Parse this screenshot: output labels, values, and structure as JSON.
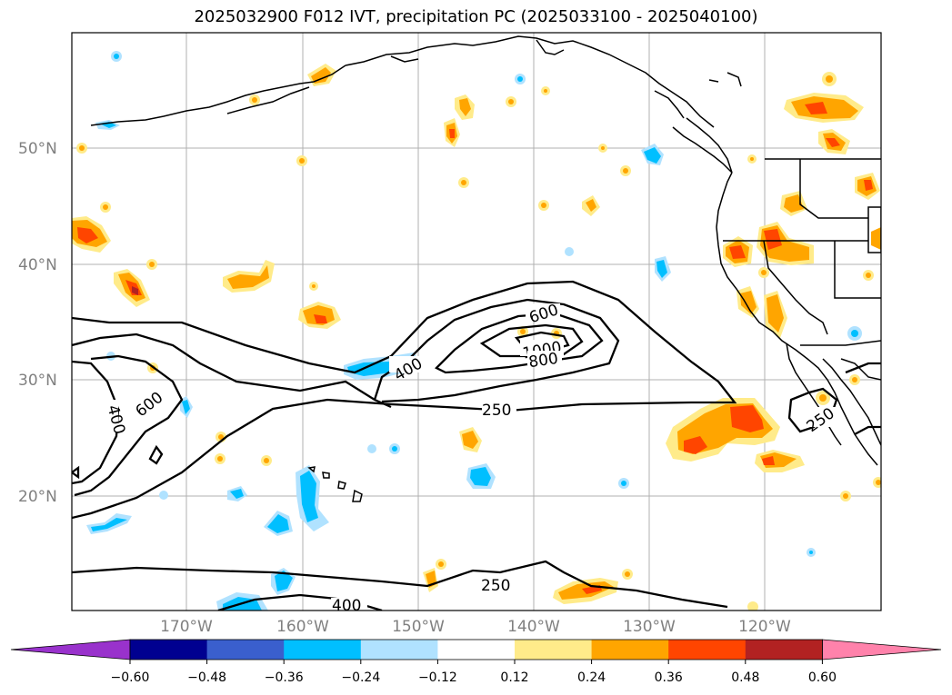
{
  "title": "2025032900 F012 IVT, precipitation PC (2025033100 - 2025040100)",
  "lat_labels": [
    "50°N",
    "40°N",
    "30°N",
    "20°N"
  ],
  "lon_labels": [
    "170°W",
    "160°W",
    "150°W",
    "140°W",
    "130°W",
    "120°W"
  ],
  "contour_labels": [
    "600",
    "1000",
    "800",
    "400",
    "250",
    "400",
    "600",
    "250",
    "250",
    "400"
  ],
  "colorbar": {
    "ticks": [
      "−0.60",
      "−0.48",
      "−0.36",
      "−0.24",
      "−0.12",
      "0.12",
      "0.24",
      "0.36",
      "0.48",
      "0.60"
    ],
    "colors": [
      "#9932cc",
      "#000090",
      "#3a5fcd",
      "#00bfff",
      "#b0e2ff",
      "#ffffff",
      "#ffeb8a",
      "#ffa500",
      "#ff4500",
      "#b22222",
      "#ff82ab"
    ]
  }
}
